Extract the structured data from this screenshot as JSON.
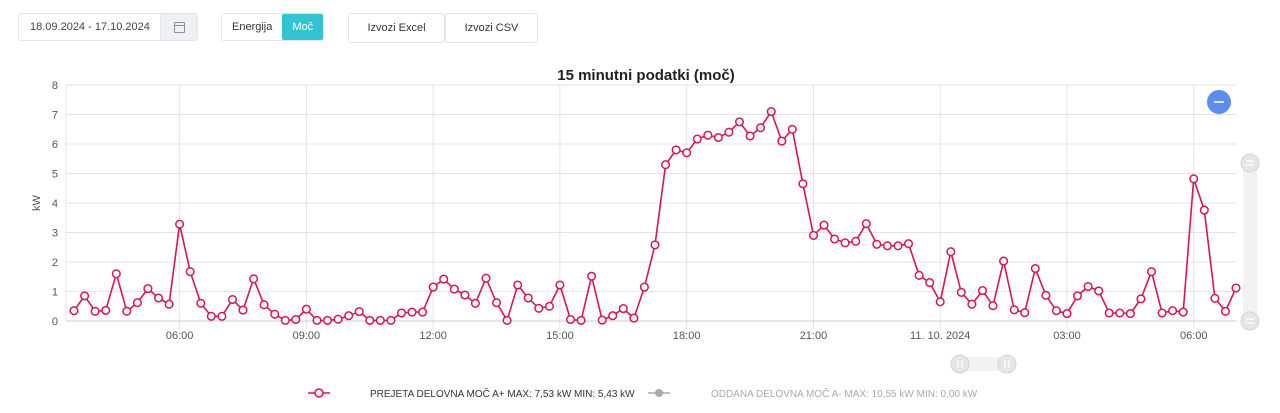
{
  "toolbar": {
    "date_range": "18.09.2024 - 17.10.2024",
    "calendar_icon": "calendar-icon",
    "tab_energy": "Energija",
    "tab_power": "Moč",
    "export_excel": "Izvozi Excel",
    "export_csv": "Izvozi CSV"
  },
  "colors": {
    "accent": "#34c3d3",
    "series_1": "#d8164f",
    "series_2": "#999999",
    "zoom_button": "#5b8def"
  },
  "zoom_button_icon": "minus-icon",
  "chart_data": {
    "type": "line",
    "title": "15 minutni podatki (moč)",
    "ylabel": "kW",
    "xlabel": "",
    "ylim": [
      0,
      8
    ],
    "yticks": [
      "0",
      "1",
      "2",
      "3",
      "4",
      "5",
      "6",
      "7",
      "8"
    ],
    "xticks": [
      "06:00",
      "09:00",
      "12:00",
      "15:00",
      "18:00",
      "21:00",
      "11. 10. 2024",
      "03:00",
      "06:00"
    ],
    "grid": true,
    "legend_placement": "bottom",
    "x_start": "2024-10-10 03:30",
    "x_interval_minutes": 15,
    "series": [
      {
        "name": "PREJETA DELOVNA MOČ A+ MAX: 7,53 kW MIN: 5,43 kW",
        "values": [
          0.35,
          0.85,
          0.33,
          0.36,
          1.6,
          0.33,
          0.62,
          1.1,
          0.78,
          0.57,
          3.28,
          1.67,
          0.6,
          0.16,
          0.16,
          0.73,
          0.37,
          1.43,
          0.55,
          0.23,
          0.02,
          0.05,
          0.4,
          0.02,
          0.02,
          0.06,
          0.18,
          0.32,
          0.02,
          0.02,
          0.02,
          0.27,
          0.3,
          0.3,
          1.15,
          1.42,
          1.08,
          0.88,
          0.6,
          1.45,
          0.62,
          0.02,
          1.22,
          0.78,
          0.43,
          0.5,
          1.22,
          0.05,
          0.02,
          1.52,
          0.03,
          0.18,
          0.42,
          0.1,
          1.15,
          2.58,
          5.3,
          5.8,
          5.7,
          6.17,
          6.3,
          6.22,
          6.4,
          6.75,
          6.27,
          6.55,
          7.1,
          6.1,
          6.5,
          4.65,
          2.9,
          3.25,
          2.78,
          2.65,
          2.7,
          3.3,
          2.6,
          2.55,
          2.55,
          2.62,
          1.55,
          1.3,
          0.65,
          2.35,
          0.97,
          0.57,
          1.03,
          0.52,
          2.03,
          0.38,
          0.28,
          1.78,
          0.87,
          0.35,
          0.25,
          0.85,
          1.17,
          1.02,
          0.27,
          0.27,
          0.25,
          0.75,
          1.67,
          0.27,
          0.35,
          0.3,
          4.82,
          3.76,
          0.77,
          0.33,
          1.12
        ]
      },
      {
        "name": "ODDANA DELOVNA MOČ A- MAX: 10,55 kW MIN: 0,00 kW",
        "values": []
      }
    ]
  }
}
